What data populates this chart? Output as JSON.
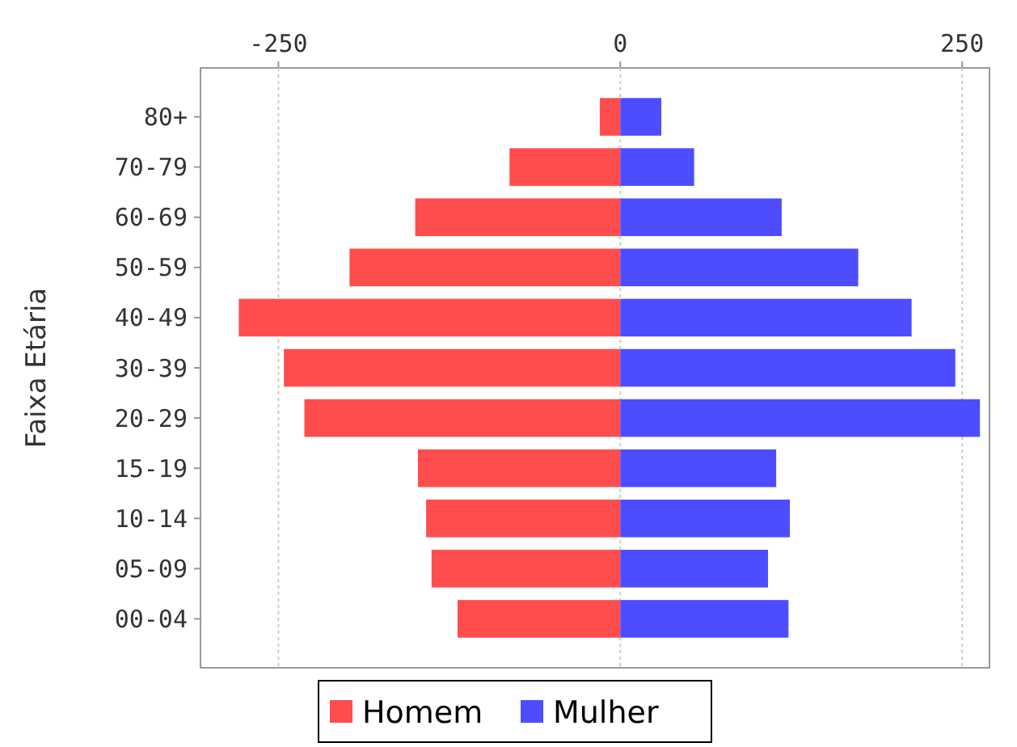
{
  "chart_data": {
    "type": "bar",
    "orientation": "horizontal",
    "stacked": true,
    "ylabel": "Faixa Etária",
    "categories": [
      "80+",
      "70-79",
      "60-69",
      "50-59",
      "40-49",
      "30-39",
      "20-29",
      "15-19",
      "10-14",
      "05-09",
      "00-04"
    ],
    "series": [
      {
        "name": "Homem",
        "color": "#ff4d4d",
        "values": [
          -15,
          -81,
          -150,
          -198,
          -279,
          -246,
          -231,
          -148,
          -142,
          -138,
          -119
        ]
      },
      {
        "name": "Mulher",
        "color": "#4d4dff",
        "values": [
          30,
          54,
          118,
          174,
          213,
          245,
          263,
          114,
          124,
          108,
          123
        ]
      }
    ],
    "xlim": [
      -307,
      270
    ],
    "xticks": [
      -250,
      0,
      250
    ],
    "grid": "x",
    "legend": "bottom"
  }
}
